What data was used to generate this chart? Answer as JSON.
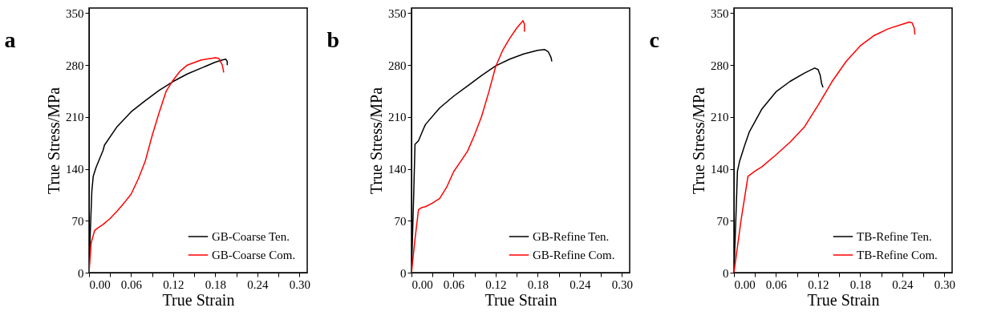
{
  "chart_data": [
    {
      "type": "line",
      "title": "a",
      "xlabel": "True Strain",
      "ylabel": "True Stress/MPa",
      "xlim": [
        0,
        0.311
      ],
      "ylim": [
        0,
        357
      ],
      "xticks": [
        {
          "value": 0,
          "label": "0.00"
        },
        {
          "value": 0.03,
          "label": null
        },
        0.06,
        {
          "value": 0.09,
          "label": null
        },
        0.12,
        {
          "value": 0.15,
          "label": null
        },
        0.18,
        {
          "value": 0.21,
          "label": null
        },
        0.24,
        {
          "value": 0.27,
          "label": null
        },
        {
          "value": 0.3,
          "label": "0.30"
        }
      ],
      "yticks": [
        0,
        70,
        140,
        210,
        280,
        350
      ],
      "legend": "bottom right",
      "grid": false,
      "series": [
        {
          "name": "GB-Coarse Ten.",
          "color": "#000000",
          "x": [
            0,
            0.002,
            0.004,
            0.006,
            0.01,
            0.02,
            0.022,
            0.04,
            0.06,
            0.08,
            0.1,
            0.12,
            0.14,
            0.16,
            0.18,
            0.19,
            0.195,
            0.197,
            0.197
          ],
          "values": [
            0,
            60,
            110,
            130,
            142,
            165,
            172,
            197,
            217,
            232,
            246,
            258,
            268,
            276,
            284,
            287,
            288,
            285,
            280
          ]
        },
        {
          "name": "GB-Coarse Com.",
          "color": "#ff0000",
          "x": [
            0,
            0.003,
            0.008,
            0.012,
            0.02,
            0.03,
            0.04,
            0.05,
            0.06,
            0.07,
            0.08,
            0.09,
            0.1,
            0.11,
            0.12,
            0.13,
            0.14,
            0.16,
            0.18,
            0.185,
            0.19,
            0.192
          ],
          "values": [
            0,
            40,
            57,
            60,
            65,
            73,
            83,
            94,
            106,
            126,
            150,
            185,
            216,
            245,
            260,
            272,
            280,
            287,
            290,
            289,
            280,
            270
          ]
        }
      ]
    },
    {
      "type": "line",
      "title": "b",
      "xlabel": "True Strain",
      "ylabel": "True Stress/MPa",
      "xlim": [
        0,
        0.311
      ],
      "ylim": [
        0,
        357
      ],
      "xticks": [
        {
          "value": 0,
          "label": "0.00"
        },
        {
          "value": 0.03,
          "label": null
        },
        0.06,
        {
          "value": 0.09,
          "label": null
        },
        0.12,
        {
          "value": 0.15,
          "label": null
        },
        0.18,
        {
          "value": 0.21,
          "label": null
        },
        0.24,
        {
          "value": 0.27,
          "label": null
        },
        {
          "value": 0.3,
          "label": "0.30"
        }
      ],
      "yticks": [
        0,
        70,
        140,
        210,
        280,
        350
      ],
      "legend": "bottom right",
      "grid": false,
      "series": [
        {
          "name": "GB-Refine  Ten.",
          "color": "#000000",
          "x": [
            0,
            0.003,
            0.005,
            0.01,
            0.018,
            0.02,
            0.04,
            0.06,
            0.08,
            0.1,
            0.12,
            0.14,
            0.16,
            0.18,
            0.19,
            0.195,
            0.199,
            0.2
          ],
          "values": [
            0,
            100,
            173,
            178,
            196,
            200,
            222,
            238,
            252,
            266,
            279,
            288,
            295,
            300,
            301,
            298,
            290,
            285
          ]
        },
        {
          "name": "GB-Refine  Com.",
          "color": "#ff0000",
          "x": [
            0,
            0.005,
            0.01,
            0.015,
            0.02,
            0.03,
            0.04,
            0.05,
            0.06,
            0.07,
            0.08,
            0.09,
            0.1,
            0.11,
            0.12,
            0.13,
            0.14,
            0.15,
            0.159,
            0.161,
            0.161
          ],
          "values": [
            0,
            45,
            85,
            88,
            89,
            94,
            100,
            115,
            136,
            150,
            164,
            186,
            211,
            243,
            278,
            300,
            316,
            330,
            340,
            335,
            325
          ]
        }
      ]
    },
    {
      "type": "line",
      "title": "c",
      "xlabel": "True Strain",
      "ylabel": "True Stress/MPa",
      "xlim": [
        0,
        0.311
      ],
      "ylim": [
        0,
        357
      ],
      "xticks": [
        {
          "value": 0,
          "label": "0.00"
        },
        {
          "value": 0.03,
          "label": null
        },
        0.06,
        {
          "value": 0.09,
          "label": null
        },
        0.12,
        {
          "value": 0.15,
          "label": null
        },
        0.18,
        {
          "value": 0.21,
          "label": null
        },
        0.24,
        {
          "value": 0.27,
          "label": null
        },
        {
          "value": 0.3,
          "label": "0.30"
        }
      ],
      "yticks": [
        0,
        70,
        140,
        210,
        280,
        350
      ],
      "legend": "bottom right",
      "grid": false,
      "series": [
        {
          "name": "TB-Refine  Ten.",
          "color": "#000000",
          "x": [
            0,
            0.003,
            0.005,
            0.008,
            0.015,
            0.022,
            0.04,
            0.06,
            0.08,
            0.1,
            0.115,
            0.12,
            0.123,
            0.125,
            0.127
          ],
          "values": [
            0,
            80,
            137,
            150,
            171,
            190,
            221,
            244,
            258,
            269,
            276,
            274,
            266,
            255,
            250
          ]
        },
        {
          "name": "TB-Refine  Com.",
          "color": "#ff0000",
          "x": [
            0,
            0.01,
            0.02,
            0.03,
            0.04,
            0.06,
            0.08,
            0.1,
            0.12,
            0.14,
            0.16,
            0.18,
            0.2,
            0.22,
            0.24,
            0.25,
            0.254,
            0.257,
            0.258
          ],
          "values": [
            0,
            70,
            130,
            137,
            143,
            159,
            176,
            196,
            226,
            258,
            285,
            306,
            320,
            329,
            335,
            338,
            337,
            330,
            321
          ]
        }
      ]
    }
  ]
}
